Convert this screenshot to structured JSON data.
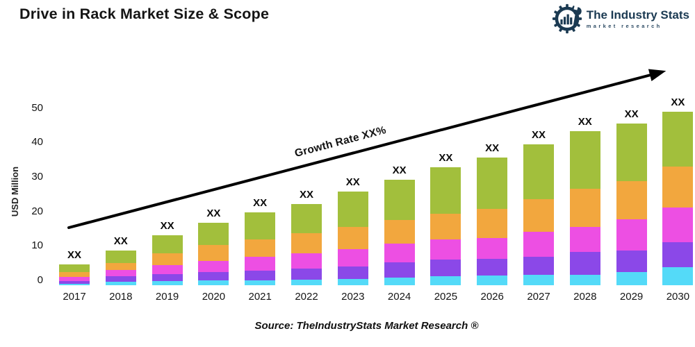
{
  "page": {
    "title": "Drive in Rack Market Size & Scope"
  },
  "logo": {
    "name": "The Industry Stats",
    "tagline": "market research",
    "color": "#1b3a52"
  },
  "chart": {
    "y_axis_label": "USD Million",
    "y_ticks": [
      "0",
      "10",
      "20",
      "30",
      "40",
      "50"
    ],
    "bar_top_label": "XX",
    "growth_annotation": "Growth Rate XX%",
    "source_note": "Source: TheIndustryStats Market Research ®"
  },
  "chart_data": {
    "type": "bar",
    "stacked": true,
    "title": "Drive in Rack Market Size & Scope",
    "ylabel": "USD Million",
    "ylim": [
      0,
      50
    ],
    "y_ticks": [
      0,
      10,
      20,
      30,
      40,
      50
    ],
    "gridlines": false,
    "legend": "none",
    "bar_value_labels": "XX",
    "annotation": "Growth Rate XX%",
    "categories": [
      "2017",
      "2018",
      "2019",
      "2020",
      "2021",
      "2022",
      "2023",
      "2024",
      "2025",
      "2026",
      "2027",
      "2028",
      "2029",
      "2030"
    ],
    "series": [
      {
        "name": "segment-1-cyan",
        "color": "#54daf8",
        "values": [
          0.5,
          1.1,
          1.3,
          1.4,
          1.4,
          1.6,
          1.8,
          2.3,
          2.6,
          2.8,
          3.0,
          3.1,
          3.9,
          5.3
        ]
      },
      {
        "name": "segment-2-purple",
        "color": "#8b48e8",
        "values": [
          0.8,
          1.5,
          1.9,
          2.4,
          2.9,
          3.2,
          3.7,
          4.3,
          4.8,
          4.8,
          5.3,
          6.5,
          6.2,
          7.1
        ]
      },
      {
        "name": "segment-3-magenta",
        "color": "#ed4fe3",
        "values": [
          1.1,
          1.8,
          2.6,
          3.3,
          3.9,
          4.4,
          5.0,
          5.4,
          5.9,
          6.1,
          7.2,
          7.3,
          8.9,
          10.1
        ]
      },
      {
        "name": "segment-4-orange",
        "color": "#f2a73e",
        "values": [
          1.4,
          2.0,
          3.4,
          4.5,
          5.1,
          5.8,
          6.4,
          6.9,
          7.4,
          8.3,
          9.4,
          10.9,
          11.0,
          11.7
        ]
      },
      {
        "name": "segment-5-green",
        "color": "#a2bf3c",
        "values": [
          2.2,
          3.6,
          5.3,
          6.4,
          7.7,
          8.5,
          10.1,
          11.6,
          13.3,
          14.8,
          15.7,
          16.6,
          16.6,
          15.8
        ]
      }
    ],
    "totals": [
      6.0,
      10.0,
      14.5,
      18.0,
      21.0,
      23.5,
      27.0,
      30.5,
      34.0,
      36.8,
      40.6,
      44.4,
      46.6,
      50.0
    ]
  }
}
